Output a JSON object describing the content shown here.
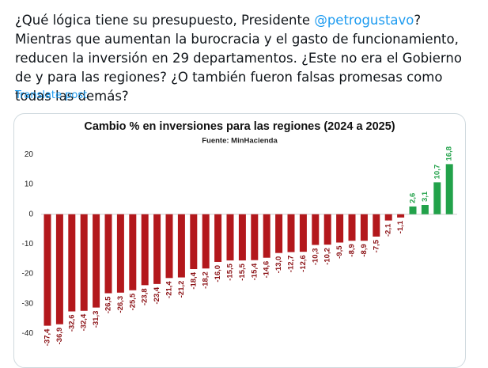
{
  "post": {
    "text": [
      "¿Qué lógica tiene su presupuesto, Presidente ",
      "@petrogustavo",
      "? Mientras que aumentan la burocracia y el gasto de funcionamiento, reducen la inversión en 29 departamentos. ¿Este no era el Gobierno de y para las regiones? ¿O también fueron falsas promesas como todas las demás?"
    ],
    "translate": "Translate post"
  },
  "chart_data": {
    "type": "bar",
    "title": "Cambio % en inversiones para las regiones (2024 a 2025)",
    "subtitle": "Fuente: MinHacienda",
    "categories": [
      null,
      null,
      null,
      null,
      null,
      null,
      null,
      null,
      null,
      null,
      null,
      null,
      null,
      null,
      null,
      null,
      null,
      null,
      null,
      null,
      null,
      null,
      null,
      null,
      null,
      null,
      null,
      null,
      null,
      null,
      null,
      null,
      null,
      null
    ],
    "values": [
      -37.4,
      -36.9,
      -32.6,
      -32.4,
      -31.3,
      -26.5,
      -26.3,
      -25.5,
      -23.8,
      -23.4,
      -21.4,
      -21.2,
      -18.4,
      -18.2,
      -16.0,
      -15.5,
      -15.5,
      -15.4,
      -14.6,
      -13.0,
      -12.7,
      -12.6,
      -10.3,
      -10.2,
      -9.5,
      -8.9,
      -8.9,
      -7.5,
      -2.1,
      -1.1,
      2.6,
      3.1,
      10.7,
      16.8
    ],
    "value_labels": [
      "-37,4",
      "-36,9",
      "-32,6",
      "-32,4",
      "-31,3",
      "-26,5",
      "-26,3",
      "-25,5",
      "-23,8",
      "-23,4",
      "-21,4",
      "-21,2",
      "-18,4",
      "-18,2",
      "-16,0",
      "-15,5",
      "-15,5",
      "-15,4",
      "-14,6",
      "-13,0",
      "-12,7",
      "-12,6",
      "-10,3",
      "-10,2",
      "-9,5",
      "-8,9",
      "-8,9",
      "-7,5",
      "-2,1",
      "-1,1",
      "2,6",
      "3,1",
      "10,7",
      "16,8"
    ],
    "negative_color": "#b3181c",
    "positive_color": "#22a24a",
    "ylim": [
      -46,
      22
    ],
    "yticks": [
      20,
      10,
      0,
      -10,
      -20,
      -30,
      -40
    ],
    "grid": false
  }
}
